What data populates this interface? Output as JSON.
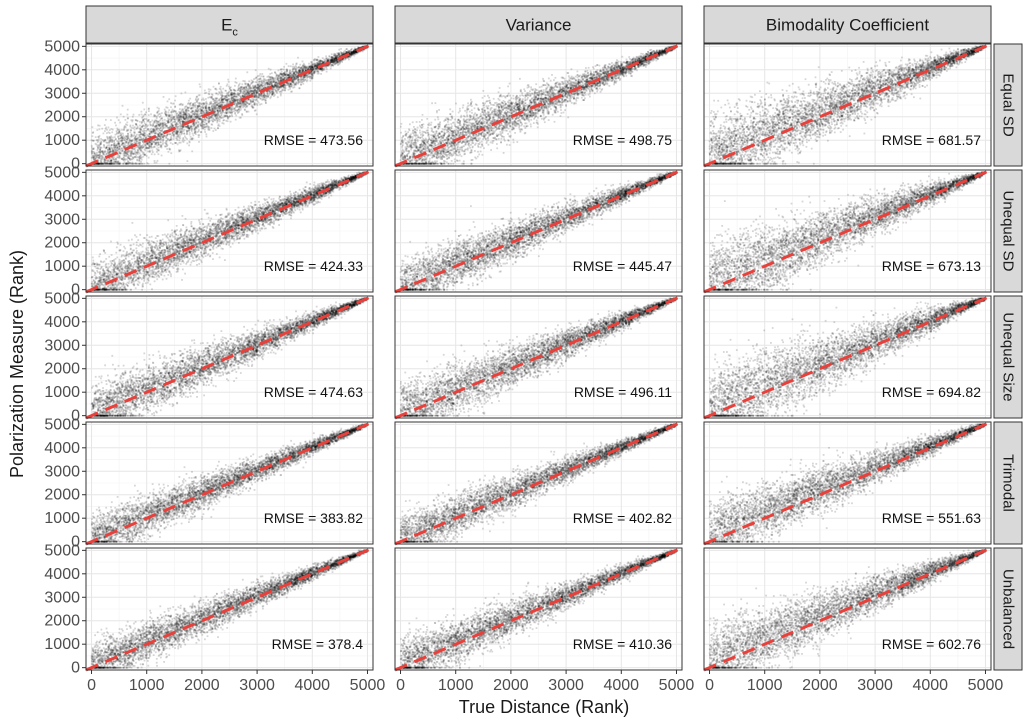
{
  "chart_data": {
    "type": "scatter",
    "xlabel": "True Distance (Rank)",
    "ylabel": "Polarization Measure (Rank)",
    "xlim": [
      -100,
      5100
    ],
    "ylim": [
      -100,
      5100
    ],
    "x_ticks": [
      0,
      1000,
      2000,
      3000,
      4000,
      5000
    ],
    "y_ticks": [
      0,
      1000,
      2000,
      3000,
      4000,
      5000
    ],
    "columns": [
      {
        "label": "E",
        "sub": "c"
      },
      {
        "label": "Variance",
        "sub": ""
      },
      {
        "label": "Bimodality Coefficient",
        "sub": ""
      }
    ],
    "rows": [
      "Equal SD",
      "Unequal SD",
      "Unequal Size",
      "Trimodal",
      "Unbalanced"
    ],
    "reference_line": {
      "type": "identity",
      "color": "#e8413c",
      "style": "dashed"
    },
    "grid": true,
    "rmse_labels": [
      [
        "RMSE = 473.56",
        "RMSE = 498.75",
        "RMSE = 681.57"
      ],
      [
        "RMSE = 424.33",
        "RMSE = 445.47",
        "RMSE = 673.13"
      ],
      [
        "RMSE = 474.63",
        "RMSE = 496.11",
        "RMSE = 694.82"
      ],
      [
        "RMSE = 383.82",
        "RMSE = 402.82",
        "RMSE = 551.63"
      ],
      [
        "RMSE = 378.4",
        "RMSE = 410.36",
        "RMSE = 602.76"
      ]
    ],
    "rmse_values": [
      [
        473.56,
        498.75,
        681.57
      ],
      [
        424.33,
        445.47,
        673.13
      ],
      [
        474.63,
        496.11,
        694.82
      ],
      [
        383.82,
        402.82,
        551.63
      ],
      [
        378.4,
        410.36,
        602.76
      ]
    ],
    "n_points_per_panel": 5000
  }
}
